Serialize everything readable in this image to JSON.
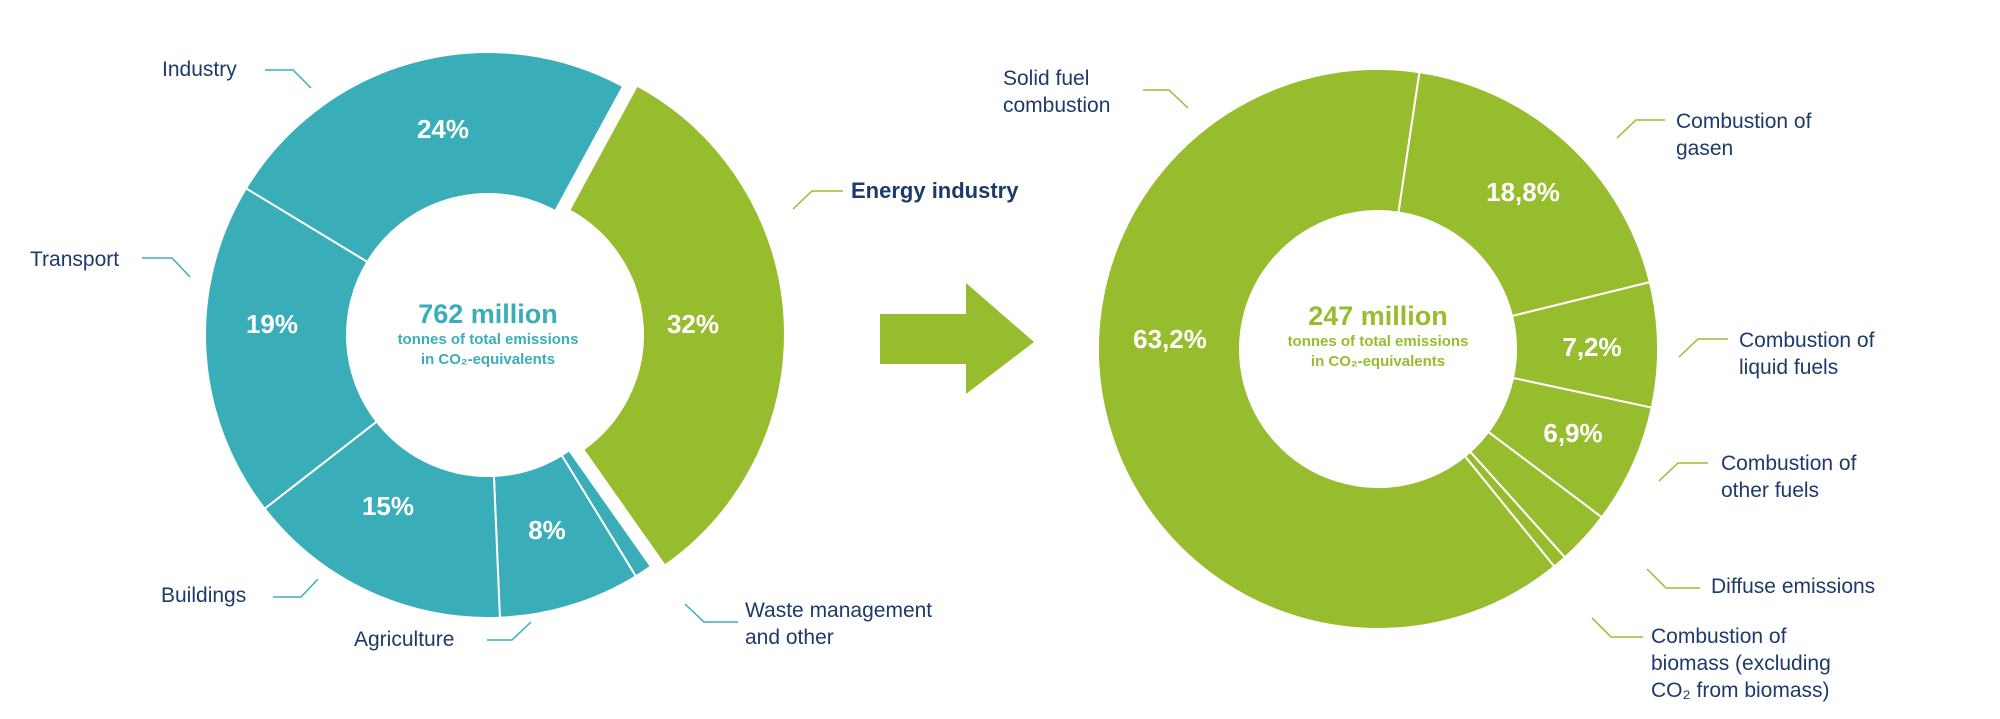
{
  "colors": {
    "teal": "#3aaeb8",
    "green": "#97bd2f",
    "label": "#1d3a6b",
    "leader_teal": "#3aaeb8",
    "leader_green": "#97bd2f"
  },
  "arrow_icon": "right-arrow-icon",
  "chart_data": [
    {
      "type": "pie",
      "center_text": {
        "total": "762 million",
        "line1": "tonnes of total emissions",
        "line2": "in CO₂-equivalents"
      },
      "slices": [
        {
          "label": "Energy industry",
          "value": 32,
          "display": "32%",
          "color": "#97bd2f",
          "exploded": true
        },
        {
          "label": "Waste management and other",
          "value": 1,
          "display": "1%",
          "color": "#3aaeb8"
        },
        {
          "label": "Agriculture",
          "value": 8,
          "display": "8%",
          "color": "#3aaeb8"
        },
        {
          "label": "Buildings",
          "value": 15,
          "display": "15%",
          "color": "#3aaeb8"
        },
        {
          "label": "Transport",
          "value": 19,
          "display": "19%",
          "color": "#3aaeb8"
        },
        {
          "label": "Industry",
          "value": 24,
          "display": "24%",
          "color": "#3aaeb8"
        }
      ]
    },
    {
      "type": "pie",
      "center_text": {
        "total": "247 million",
        "line1": "tonnes of total emissions",
        "line2": "in CO₂-equivalents"
      },
      "slices": [
        {
          "label": "Combustion of gasen",
          "value": 18.8,
          "display": "18,8%",
          "color": "#97bd2f"
        },
        {
          "label": "Combustion of liquid fuels",
          "value": 7.2,
          "display": "7,2%",
          "color": "#97bd2f"
        },
        {
          "label": "Combustion of other fuels",
          "value": 6.9,
          "display": "6,9%",
          "color": "#97bd2f"
        },
        {
          "label": "Diffuse emissions",
          "value": 3.1,
          "display": "3,1%",
          "color": "#97bd2f"
        },
        {
          "label": "Combustion of biomass (excluding CO₂ from biomass)",
          "value": 0.8,
          "display": "0,8%",
          "color": "#97bd2f"
        },
        {
          "label": "Solid fuel combustion",
          "value": 63.2,
          "display": "63,2%",
          "color": "#97bd2f"
        }
      ]
    }
  ]
}
